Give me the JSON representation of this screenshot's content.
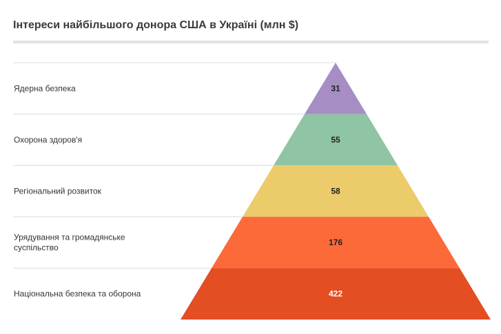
{
  "chart_data": {
    "type": "pyramid",
    "title": "Інтереси найбільшого донора США в Україні (млн $)",
    "categories": [
      "Ядерна безпека",
      "Охорона здоров'я",
      "Регіональний розвиток",
      "Урядування та громадянське суспільство",
      "Національна безпека та оборона"
    ],
    "category_lines": [
      [
        "Ядерна безпека"
      ],
      [
        "Охорона здоров'я"
      ],
      [
        "Регіональний розвиток"
      ],
      [
        "Урядування та громадянське",
        "суспільство"
      ],
      [
        "Національна безпека та оборона"
      ]
    ],
    "values": [
      31,
      55,
      58,
      176,
      422
    ],
    "colors": [
      "#a68dc4",
      "#8fc4a5",
      "#eccb6b",
      "#fc6a3a",
      "#e34e22"
    ],
    "value_label_colors": [
      "#222222",
      "#222222",
      "#222222",
      "#222222",
      "#ffffff"
    ],
    "gridline_color": "#dcdcdc",
    "title_rule_color": "#e2e2e2"
  }
}
